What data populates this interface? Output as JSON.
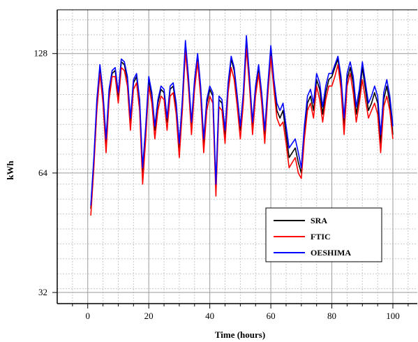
{
  "chart_data": {
    "type": "line",
    "title": "",
    "xlabel": "Time (hours)",
    "ylabel": "kWh",
    "xlim": [
      -10,
      108
    ],
    "ylim": [
      30,
      165
    ],
    "y_scale": "log2",
    "xticks": [
      0,
      20,
      40,
      60,
      80,
      100
    ],
    "yticks": [
      32,
      64,
      128
    ],
    "grid": true,
    "legend_position": "lower-right",
    "x": [
      1,
      2,
      3,
      4,
      5,
      6,
      7,
      8,
      9,
      10,
      11,
      12,
      13,
      14,
      15,
      16,
      17,
      18,
      19,
      20,
      21,
      22,
      23,
      24,
      25,
      26,
      27,
      28,
      29,
      30,
      31,
      32,
      33,
      34,
      35,
      36,
      37,
      38,
      39,
      40,
      41,
      42,
      43,
      44,
      45,
      46,
      47,
      48,
      49,
      50,
      51,
      52,
      53,
      54,
      55,
      56,
      57,
      58,
      59,
      60,
      61,
      62,
      63,
      64,
      65,
      66,
      67,
      68,
      69,
      70,
      71,
      72,
      73,
      74,
      75,
      76,
      77,
      78,
      79,
      80,
      81,
      82,
      83,
      84,
      85,
      86,
      87,
      88,
      89,
      90,
      91,
      92,
      93,
      94,
      95,
      96,
      97,
      98,
      99,
      100
    ],
    "series": [
      {
        "name": "SRA",
        "color": "#000000",
        "values": [
          52,
          68,
          96,
          118,
          100,
          76,
          102,
          114,
          116,
          100,
          122,
          120,
          110,
          86,
          108,
          112,
          96,
          64,
          82,
          110,
          100,
          82,
          96,
          104,
          102,
          86,
          104,
          106,
          94,
          74,
          96,
          134,
          110,
          84,
          108,
          126,
          104,
          76,
          96,
          104,
          100,
          58,
          98,
          96,
          80,
          106,
          124,
          116,
          98,
          82,
          100,
          136,
          110,
          84,
          104,
          118,
          100,
          80,
          104,
          130,
          108,
          92,
          88,
          92,
          80,
          70,
          72,
          74,
          68,
          64,
          80,
          96,
          100,
          92,
          110,
          104,
          90,
          102,
          110,
          112,
          118,
          124,
          108,
          84,
          110,
          118,
          108,
          90,
          100,
          118,
          104,
          92,
          96,
          102,
          96,
          76,
          98,
          106,
          96,
          80
        ]
      },
      {
        "name": "FTIC",
        "color": "#ff0000",
        "values": [
          50,
          66,
          92,
          114,
          96,
          72,
          98,
          112,
          112,
          96,
          118,
          116,
          106,
          82,
          104,
          108,
          92,
          60,
          78,
          106,
          96,
          78,
          92,
          100,
          98,
          82,
          100,
          102,
          90,
          70,
          92,
          130,
          106,
          80,
          104,
          122,
          100,
          72,
          92,
          100,
          96,
          56,
          94,
          92,
          76,
          102,
          118,
          110,
          94,
          78,
          96,
          132,
          106,
          80,
          100,
          114,
          96,
          76,
          100,
          126,
          104,
          88,
          84,
          86,
          76,
          66,
          68,
          70,
          64,
          62,
          78,
          92,
          96,
          88,
          106,
          98,
          86,
          98,
          106,
          106,
          112,
          120,
          104,
          80,
          106,
          114,
          102,
          86,
          96,
          110,
          98,
          88,
          92,
          96,
          90,
          72,
          94,
          100,
          92,
          78
        ]
      },
      {
        "name": "OESHIMA",
        "color": "#0000ff",
        "values": [
          53,
          70,
          98,
          120,
          102,
          78,
          104,
          116,
          118,
          102,
          124,
          122,
          112,
          88,
          110,
          114,
          98,
          66,
          84,
          112,
          102,
          84,
          98,
          106,
          104,
          88,
          106,
          108,
          96,
          76,
          98,
          138,
          112,
          86,
          110,
          128,
          106,
          78,
          98,
          106,
          102,
          60,
          100,
          98,
          82,
          108,
          126,
          118,
          100,
          84,
          102,
          142,
          112,
          86,
          106,
          120,
          102,
          82,
          106,
          134,
          110,
          96,
          92,
          96,
          84,
          74,
          76,
          78,
          72,
          66,
          84,
          100,
          104,
          96,
          114,
          108,
          94,
          106,
          114,
          114,
          120,
          126,
          112,
          88,
          114,
          122,
          112,
          94,
          104,
          122,
          108,
          96,
          100,
          106,
          100,
          80,
          102,
          110,
          100,
          84
        ]
      }
    ]
  }
}
